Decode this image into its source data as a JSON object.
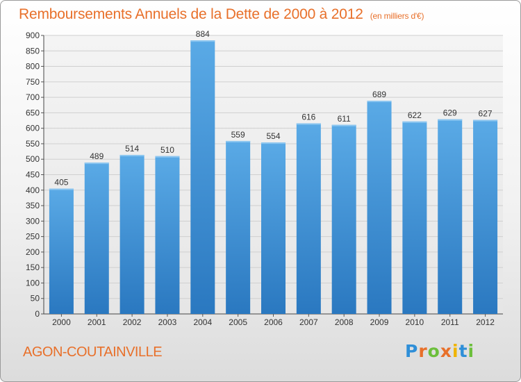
{
  "header": {
    "title": "Remboursements Annuels de la Dette de 2000 à 2012",
    "unit": "(en milliers d'€)"
  },
  "footer": {
    "commune": "AGON-COUTAINVILLE",
    "logo_letters": [
      "P",
      "r",
      "o",
      "x",
      "i",
      "t",
      "i"
    ],
    "logo_colors": [
      "#2f8fd8",
      "#e8702a",
      "#6cbf3c",
      "#e8702a",
      "#f0b400",
      "#2f8fd8",
      "#6cbf3c"
    ]
  },
  "colors": {
    "title": "#e8702a",
    "bar_top": "#5aaae6",
    "bar_bottom": "#2a78c0",
    "grid": "#cfcfcf"
  },
  "chart_data": {
    "type": "bar",
    "title": "Remboursements Annuels de la Dette de 2000 à 2012",
    "xlabel": "",
    "ylabel": "",
    "categories": [
      "2000",
      "2001",
      "2002",
      "2003",
      "2004",
      "2005",
      "2006",
      "2007",
      "2008",
      "2009",
      "2010",
      "2011",
      "2012"
    ],
    "values": [
      405,
      489,
      514,
      510,
      884,
      559,
      554,
      616,
      611,
      689,
      622,
      629,
      627
    ],
    "data_labels": [
      "405",
      "489",
      "514",
      "510",
      "884",
      "559",
      "554",
      "616",
      "611",
      "689",
      "622",
      "629",
      "627"
    ],
    "yticks": [
      0,
      50,
      100,
      150,
      200,
      250,
      300,
      350,
      400,
      450,
      500,
      550,
      600,
      650,
      700,
      750,
      800,
      850,
      900
    ],
    "ylim": [
      0,
      900
    ],
    "grid": true,
    "legend": "none"
  }
}
